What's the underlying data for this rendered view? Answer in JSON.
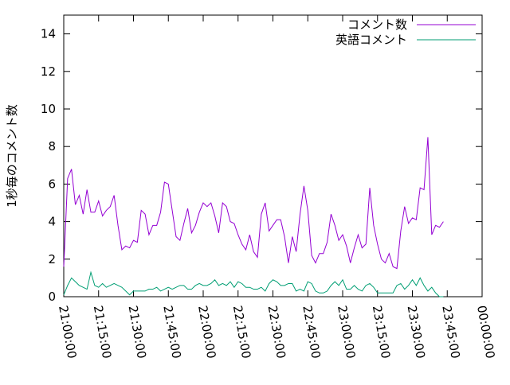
{
  "chart_data": {
    "type": "line",
    "ylabel": "1秒毎のコメント数",
    "x": [
      "21:00:00",
      "21:01:40",
      "21:03:20",
      "21:05:00",
      "21:06:40",
      "21:08:20",
      "21:10:00",
      "21:11:40",
      "21:13:20",
      "21:15:00",
      "21:16:40",
      "21:18:20",
      "21:20:00",
      "21:21:40",
      "21:23:20",
      "21:25:00",
      "21:26:40",
      "21:28:20",
      "21:30:00",
      "21:31:40",
      "21:33:20",
      "21:35:00",
      "21:36:40",
      "21:38:20",
      "21:40:00",
      "21:41:40",
      "21:43:20",
      "21:45:00",
      "21:46:40",
      "21:48:20",
      "21:50:00",
      "21:51:40",
      "21:53:20",
      "21:55:00",
      "21:56:40",
      "21:58:20",
      "22:00:00",
      "22:01:40",
      "22:03:20",
      "22:05:00",
      "22:06:40",
      "22:08:20",
      "22:10:00",
      "22:11:40",
      "22:13:20",
      "22:15:00",
      "22:16:40",
      "22:18:20",
      "22:20:00",
      "22:21:40",
      "22:23:20",
      "22:25:00",
      "22:26:40",
      "22:28:20",
      "22:30:00",
      "22:31:40",
      "22:33:20",
      "22:35:00",
      "22:36:40",
      "22:38:20",
      "22:40:00",
      "22:41:40",
      "22:43:20",
      "22:45:00",
      "22:46:40",
      "22:48:20",
      "22:50:00",
      "22:51:40",
      "22:53:20",
      "22:55:00",
      "22:56:40",
      "22:58:20",
      "23:00:00",
      "23:01:40",
      "23:03:20",
      "23:05:00",
      "23:06:40",
      "23:08:20",
      "23:10:00",
      "23:11:40",
      "23:13:20",
      "23:15:00",
      "23:16:40",
      "23:18:20",
      "23:20:00",
      "23:21:40",
      "23:23:20",
      "23:25:00",
      "23:26:40",
      "23:28:20",
      "23:30:00",
      "23:31:40",
      "23:33:20",
      "23:35:00",
      "23:36:40",
      "23:38:20",
      "23:40:00",
      "23:41:40",
      "23:43:20"
    ],
    "series": [
      {
        "name": "コメント数",
        "color": "#9400d3",
        "values": [
          1.6,
          6.3,
          6.8,
          4.9,
          5.4,
          4.4,
          5.7,
          4.5,
          4.5,
          5.1,
          4.3,
          4.6,
          4.8,
          5.4,
          3.8,
          2.5,
          2.7,
          2.6,
          3.0,
          2.9,
          4.6,
          4.4,
          3.3,
          3.8,
          3.8,
          4.5,
          6.1,
          6.0,
          4.6,
          3.2,
          3.0,
          3.9,
          4.7,
          3.4,
          3.8,
          4.5,
          5.0,
          4.8,
          5.0,
          4.3,
          3.4,
          5.0,
          4.8,
          4.0,
          3.9,
          3.3,
          2.8,
          2.5,
          3.3,
          2.4,
          2.1,
          4.4,
          5.0,
          3.5,
          3.8,
          4.1,
          4.1,
          3.2,
          1.8,
          3.2,
          2.4,
          4.4,
          5.9,
          4.6,
          2.2,
          1.8,
          2.3,
          2.3,
          2.9,
          4.4,
          3.8,
          3.0,
          3.3,
          2.7,
          1.8,
          2.6,
          3.3,
          2.6,
          2.8,
          5.8,
          3.8,
          2.8,
          2.0,
          1.8,
          2.3,
          1.6,
          1.5,
          3.5,
          4.8,
          3.9,
          4.2,
          4.1,
          5.8,
          5.7,
          8.5,
          3.3,
          3.8,
          3.7,
          4.0
        ]
      },
      {
        "name": "英語コメント",
        "color": "#009e73",
        "values": [
          0.1,
          0.6,
          1.0,
          0.8,
          0.6,
          0.5,
          0.4,
          1.3,
          0.6,
          0.5,
          0.7,
          0.5,
          0.6,
          0.7,
          0.6,
          0.5,
          0.3,
          0.1,
          0.3,
          0.3,
          0.3,
          0.3,
          0.4,
          0.4,
          0.5,
          0.3,
          0.4,
          0.5,
          0.4,
          0.5,
          0.6,
          0.6,
          0.4,
          0.4,
          0.6,
          0.7,
          0.6,
          0.6,
          0.7,
          0.9,
          0.6,
          0.7,
          0.6,
          0.8,
          0.5,
          0.8,
          0.7,
          0.5,
          0.5,
          0.4,
          0.4,
          0.5,
          0.3,
          0.7,
          0.9,
          0.8,
          0.6,
          0.6,
          0.7,
          0.7,
          0.3,
          0.4,
          0.3,
          0.8,
          0.7,
          0.3,
          0.2,
          0.2,
          0.3,
          0.6,
          0.8,
          0.6,
          0.9,
          0.4,
          0.4,
          0.6,
          0.4,
          0.3,
          0.6,
          0.7,
          0.5,
          0.2,
          0.2,
          0.2,
          0.2,
          0.2,
          0.6,
          0.7,
          0.4,
          0.6,
          0.9,
          0.6,
          1.0,
          0.6,
          0.3,
          0.5,
          0.2,
          0.0,
          0.0
        ]
      }
    ],
    "xlim": [
      "21:00:00",
      "00:00:00"
    ],
    "xticks": [
      "21:00:00",
      "21:15:00",
      "21:30:00",
      "21:45:00",
      "22:00:00",
      "22:15:00",
      "22:30:00",
      "22:45:00",
      "23:00:00",
      "23:15:00",
      "23:30:00",
      "23:45:00",
      "00:00:00"
    ],
    "ylim": [
      0,
      15
    ],
    "yticks": [
      0,
      2,
      4,
      6,
      8,
      10,
      12,
      14
    ],
    "legend": "top-right"
  }
}
